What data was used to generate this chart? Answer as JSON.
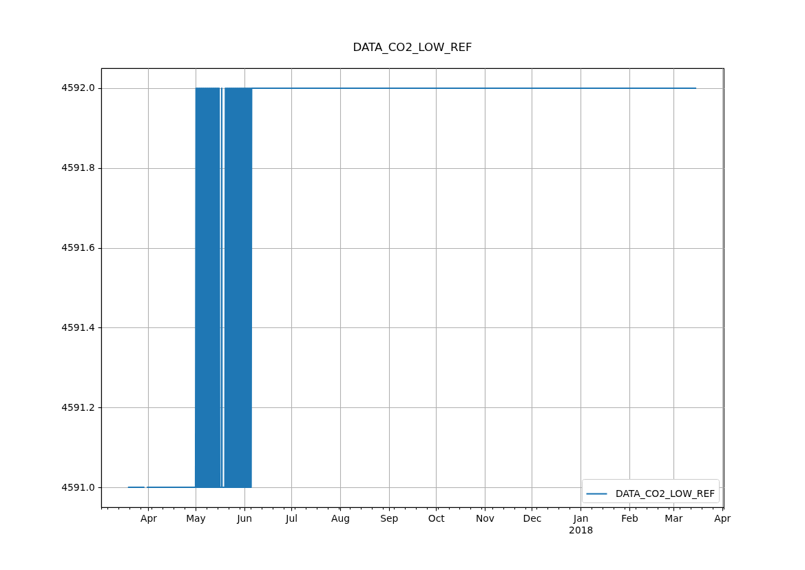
{
  "chart_data": {
    "type": "line",
    "title": "DATA_CO2_LOW_REF",
    "x": [
      "2017-03-19",
      "2017-03-29T12:00",
      "2017-03-30",
      "2017-03-31",
      "2017-05-01",
      "2017-05-01T08:00",
      "2017-05-01T16:00",
      "2017-05-02",
      "2017-05-02T08:00",
      "2017-05-02T16:00",
      "2017-05-03",
      "2017-05-03T08:00",
      "2017-05-03T16:00",
      "2017-05-04",
      "2017-05-04T08:00",
      "2017-05-04T16:00",
      "2017-05-05",
      "2017-05-05T08:00",
      "2017-05-05T16:00",
      "2017-05-06",
      "2017-05-06T08:00",
      "2017-05-06T16:00",
      "2017-05-07",
      "2017-05-07T08:00",
      "2017-05-07T16:00",
      "2017-05-08",
      "2017-05-08T08:00",
      "2017-05-08T16:00",
      "2017-05-09",
      "2017-05-09T08:00",
      "2017-05-09T16:00",
      "2017-05-10",
      "2017-05-10T08:00",
      "2017-05-10T16:00",
      "2017-05-11",
      "2017-05-11T08:00",
      "2017-05-11T16:00",
      "2017-05-12",
      "2017-05-12T08:00",
      "2017-05-12T16:00",
      "2017-05-13",
      "2017-05-13T08:00",
      "2017-05-13T16:00",
      "2017-05-14",
      "2017-05-14T08:00",
      "2017-05-14T16:00",
      "2017-05-15",
      "2017-05-15T08:00",
      "2017-05-15T16:00",
      "2017-05-16",
      "2017-05-16T08:00",
      "2017-05-17T12:00",
      "2017-05-17T16:00",
      "2017-05-17T20:00",
      "2017-05-19T16:00",
      "2017-05-20",
      "2017-05-20T08:00",
      "2017-05-20T16:00",
      "2017-05-21",
      "2017-05-21T08:00",
      "2017-05-21T16:00",
      "2017-05-22",
      "2017-05-22T08:00",
      "2017-05-22T16:00",
      "2017-05-23",
      "2017-05-23T08:00",
      "2017-05-23T16:00",
      "2017-05-24",
      "2017-05-24T08:00",
      "2017-05-24T16:00",
      "2017-05-25",
      "2017-05-25T08:00",
      "2017-05-25T16:00",
      "2017-05-26",
      "2017-05-26T08:00",
      "2017-05-26T16:00",
      "2017-05-27",
      "2017-05-27T08:00",
      "2017-05-27T16:00",
      "2017-05-28",
      "2017-05-28T08:00",
      "2017-05-28T16:00",
      "2017-05-29",
      "2017-05-29T08:00",
      "2017-05-29T16:00",
      "2017-05-30",
      "2017-05-30T08:00",
      "2017-05-30T16:00",
      "2017-05-31",
      "2017-05-31T08:00",
      "2017-05-31T16:00",
      "2017-06-01",
      "2017-06-01T08:00",
      "2017-06-01T16:00",
      "2017-06-02",
      "2017-06-02T08:00",
      "2017-06-02T16:00",
      "2017-06-03",
      "2017-06-03T08:00",
      "2017-06-03T16:00",
      "2017-06-04",
      "2017-06-04T08:00",
      "2017-06-04T16:00",
      "2017-06-05",
      "2017-06-05T08:00",
      "2017-06-05T16:00",
      "2018-03-15T12:00"
    ],
    "series": [
      {
        "name": "DATA_CO2_LOW_REF",
        "color": "#1f77b4",
        "values": [
          4591,
          4591,
          null,
          4591,
          4591,
          4592,
          4591,
          4592,
          4591,
          4592,
          4591,
          4592,
          4591,
          4592,
          4591,
          4592,
          4591,
          4592,
          4591,
          4592,
          4591,
          4592,
          4591,
          4592,
          4591,
          4592,
          4591,
          4592,
          4591,
          4592,
          4591,
          4592,
          4591,
          4592,
          4591,
          4592,
          4591,
          4592,
          4591,
          4592,
          4591,
          4592,
          4591,
          4592,
          4591,
          4592,
          4591,
          4592,
          4591,
          4592,
          4591,
          4591,
          4592,
          4591,
          4591,
          4592,
          4591,
          4592,
          4591,
          4592,
          4591,
          4592,
          4591,
          4592,
          4591,
          4592,
          4591,
          4592,
          4591,
          4592,
          4591,
          4592,
          4591,
          4592,
          4591,
          4592,
          4591,
          4592,
          4591,
          4592,
          4591,
          4592,
          4591,
          4592,
          4591,
          4592,
          4591,
          4592,
          4591,
          4592,
          4591,
          4592,
          4591,
          4592,
          4591,
          4592,
          4591,
          4592,
          4591,
          4592,
          4591,
          4592,
          4591,
          4592,
          4591,
          4592,
          4592
        ]
      }
    ],
    "xlim": [
      "2017-03-02",
      "2018-04-02"
    ],
    "ylim": [
      4590.95,
      4592.05
    ],
    "xticks": [
      {
        "value": "2017-03-02",
        "label": null
      },
      {
        "value": "2017-03-06",
        "label": null
      },
      {
        "value": "2017-03-13",
        "label": null
      },
      {
        "value": "2017-03-20",
        "label": null
      },
      {
        "value": "2017-03-27",
        "label": null
      },
      {
        "value": "2017-04-01",
        "label": "Apr"
      },
      {
        "value": "2017-04-03",
        "label": null
      },
      {
        "value": "2017-04-10",
        "label": null
      },
      {
        "value": "2017-04-17",
        "label": null
      },
      {
        "value": "2017-04-24",
        "label": null
      },
      {
        "value": "2017-05-01",
        "label": "May"
      },
      {
        "value": "2017-05-08",
        "label": null
      },
      {
        "value": "2017-05-15",
        "label": null
      },
      {
        "value": "2017-05-22",
        "label": null
      },
      {
        "value": "2017-05-29",
        "label": null
      },
      {
        "value": "2017-06-01",
        "label": "Jun"
      },
      {
        "value": "2017-06-05",
        "label": null
      },
      {
        "value": "2017-06-12",
        "label": null
      },
      {
        "value": "2017-06-19",
        "label": null
      },
      {
        "value": "2017-06-26",
        "label": null
      },
      {
        "value": "2017-07-01",
        "label": "Jul"
      },
      {
        "value": "2017-07-03",
        "label": null
      },
      {
        "value": "2017-07-10",
        "label": null
      },
      {
        "value": "2017-07-17",
        "label": null
      },
      {
        "value": "2017-07-24",
        "label": null
      },
      {
        "value": "2017-07-31",
        "label": null
      },
      {
        "value": "2017-08-01",
        "label": "Aug"
      },
      {
        "value": "2017-08-07",
        "label": null
      },
      {
        "value": "2017-08-14",
        "label": null
      },
      {
        "value": "2017-08-21",
        "label": null
      },
      {
        "value": "2017-08-28",
        "label": null
      },
      {
        "value": "2017-09-01",
        "label": "Sep"
      },
      {
        "value": "2017-09-04",
        "label": null
      },
      {
        "value": "2017-09-11",
        "label": null
      },
      {
        "value": "2017-09-18",
        "label": null
      },
      {
        "value": "2017-09-25",
        "label": null
      },
      {
        "value": "2017-10-01",
        "label": "Oct"
      },
      {
        "value": "2017-10-02",
        "label": null
      },
      {
        "value": "2017-10-09",
        "label": null
      },
      {
        "value": "2017-10-16",
        "label": null
      },
      {
        "value": "2017-10-23",
        "label": null
      },
      {
        "value": "2017-10-30",
        "label": null
      },
      {
        "value": "2017-11-01",
        "label": "Nov"
      },
      {
        "value": "2017-11-06",
        "label": null
      },
      {
        "value": "2017-11-13",
        "label": null
      },
      {
        "value": "2017-11-20",
        "label": null
      },
      {
        "value": "2017-11-27",
        "label": null
      },
      {
        "value": "2017-12-01",
        "label": "Dec"
      },
      {
        "value": "2017-12-04",
        "label": null
      },
      {
        "value": "2017-12-11",
        "label": null
      },
      {
        "value": "2017-12-18",
        "label": null
      },
      {
        "value": "2017-12-25",
        "label": null
      },
      {
        "value": "2018-01-01",
        "label": "Jan\n2018"
      },
      {
        "value": "2018-01-08",
        "label": null
      },
      {
        "value": "2018-01-15",
        "label": null
      },
      {
        "value": "2018-01-22",
        "label": null
      },
      {
        "value": "2018-01-29",
        "label": null
      },
      {
        "value": "2018-02-01",
        "label": "Feb"
      },
      {
        "value": "2018-02-05",
        "label": null
      },
      {
        "value": "2018-02-12",
        "label": null
      },
      {
        "value": "2018-02-19",
        "label": null
      },
      {
        "value": "2018-02-26",
        "label": null
      },
      {
        "value": "2018-03-01",
        "label": "Mar"
      },
      {
        "value": "2018-03-05",
        "label": null
      },
      {
        "value": "2018-03-12",
        "label": null
      },
      {
        "value": "2018-03-19",
        "label": null
      },
      {
        "value": "2018-03-26",
        "label": null
      },
      {
        "value": "2018-04-01",
        "label": "Apr"
      },
      {
        "value": "2018-04-02",
        "label": null
      }
    ],
    "yticks": [
      {
        "value": 4591,
        "label": "4591.0"
      },
      4591.2,
      4591.4,
      4591.6,
      4591.8,
      {
        "value": 4592,
        "label": "4592.0"
      }
    ],
    "grid": true,
    "legend": "bottom right",
    "line_style": "solid"
  }
}
